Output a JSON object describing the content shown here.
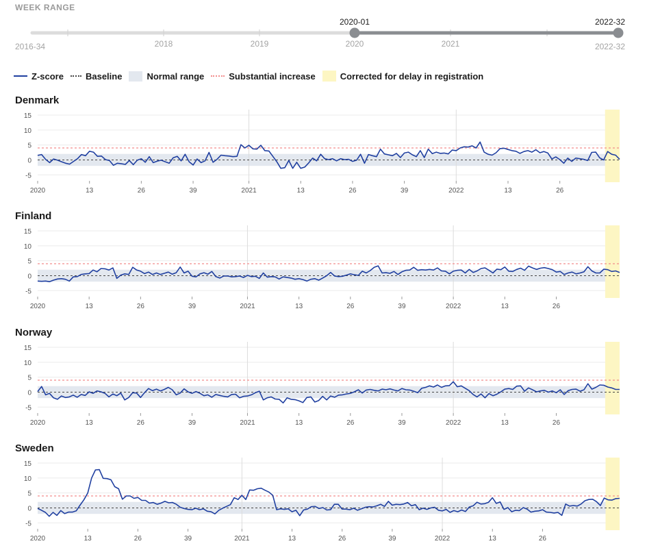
{
  "range": {
    "title": "WEEK RANGE",
    "min_label": "2016-34",
    "max_label": "2022-32",
    "start_label": "2020-01",
    "end_label": "2022-32",
    "tick_labels": [
      "2018",
      "2019",
      "2020",
      "2021"
    ]
  },
  "legend": {
    "zscore": "Z-score",
    "baseline": "Baseline",
    "normal": "Normal range",
    "substantial": "Substantial increase",
    "corrected": "Corrected for delay in registration"
  },
  "colors": {
    "zscore": "#1f3fa0",
    "baseline": "#444444",
    "normal_range": "#e3e8ef",
    "substantial": "#f28c8c",
    "corrected": "#fdf6c3",
    "slider_selected": "#8a8d91",
    "slider_track": "#dcdcdc"
  },
  "chart_data": [
    {
      "type": "line",
      "title": "Denmark",
      "x_tick_labels": [
        "2020",
        "13",
        "26",
        "39",
        "2021",
        "13",
        "26",
        "39",
        "2022",
        "13",
        "26"
      ],
      "y_ticks": [
        15,
        10,
        5,
        0,
        -5
      ],
      "ylim": [
        -7,
        15
      ],
      "baseline": 0,
      "normal_range": [
        -2,
        2
      ],
      "substantial_threshold": 4,
      "corrected_weeks": 4,
      "series": [
        {
          "values": [
            1.5,
            1.8,
            0.2,
            -0.9,
            0.3,
            -0.1,
            -0.6,
            -1.1,
            -1.4,
            -0.5,
            0.4,
            1.8,
            1.4,
            2.9,
            2.6,
            1.2,
            1.3,
            0.1,
            -0.2,
            -1.8,
            -1.1,
            -1.3,
            -1.5,
            -0.2,
            -1.6,
            -0.1,
            0.4,
            -0.8,
            1.1,
            -0.9,
            -0.4,
            -0.1,
            -0.6,
            -1.1,
            0.7,
            1.2,
            -0.3,
            1.9,
            -0.6,
            -1.7,
            0.3,
            -0.9,
            -0.3,
            2.5,
            -0.8,
            0.2,
            1.6,
            1.4,
            1.3,
            1.1,
            1.2,
            5.1,
            4.0,
            4.9,
            3.7,
            3.6,
            4.9,
            3.1,
            3.0,
            1.2,
            -0.6,
            -2.8,
            -2.6,
            -0.2,
            -2.8,
            -0.8,
            -2.8,
            -2.4,
            -1.0,
            0.6,
            -0.3,
            1.9,
            0.4,
            0.1,
            0.4,
            -0.3,
            0.4,
            0.1,
            0.2,
            -0.5,
            -0.1,
            1.9,
            -1.1,
            1.8,
            1.4,
            1.1,
            3.6,
            2.0,
            1.7,
            1.4,
            2.2,
            0.8,
            2.3,
            2.6,
            1.7,
            1.1,
            3.1,
            0.8,
            3.6,
            2.1,
            2.6,
            2.2,
            2.3,
            2.0,
            3.3,
            3.1,
            4.0,
            4.4,
            4.3,
            4.7,
            4.0,
            6.0,
            2.6,
            1.9,
            1.6,
            2.4,
            3.8,
            3.9,
            3.5,
            3.1,
            2.9,
            2.2,
            2.8,
            3.1,
            2.6,
            3.4,
            2.4,
            2.8,
            2.3,
            0.3,
            1.0,
            0.1,
            -1.1,
            0.6,
            -0.5,
            0.6,
            0.4,
            0.2,
            -0.2,
            2.5,
            2.6,
            0.7,
            0.0,
            2.8,
            1.9,
            1.6,
            0.2
          ]
        }
      ]
    },
    {
      "type": "line",
      "title": "Finland",
      "x_tick_labels": [
        "2020",
        "13",
        "26",
        "39",
        "2021",
        "13",
        "26",
        "39",
        "2022",
        "13",
        "26"
      ],
      "y_ticks": [
        15,
        10,
        5,
        0,
        -5
      ],
      "ylim": [
        -7,
        15
      ],
      "baseline": 0,
      "normal_range": [
        -2,
        2
      ],
      "substantial_threshold": 4,
      "corrected_weeks": 4,
      "series": [
        {
          "values": [
            -1.8,
            -1.9,
            -1.8,
            -2.0,
            -1.5,
            -1.1,
            -1.0,
            -1.2,
            -1.8,
            -0.4,
            -0.3,
            0.4,
            0.6,
            0.7,
            1.9,
            1.3,
            2.4,
            2.3,
            1.9,
            2.6,
            -0.9,
            0.2,
            0.6,
            0.4,
            2.8,
            1.9,
            1.5,
            0.7,
            1.2,
            0.4,
            0.9,
            0.4,
            0.8,
            1.2,
            0.5,
            1.0,
            2.9,
            0.9,
            1.5,
            -0.2,
            -0.4,
            0.6,
            1.0,
            0.5,
            1.4,
            -0.3,
            -0.8,
            -0.1,
            -0.1,
            -0.4,
            -0.3,
            -0.1,
            -0.6,
            0.1,
            -0.3,
            -0.2,
            -0.9,
            0.9,
            -0.5,
            -0.3,
            -0.4,
            -1.1,
            -0.4,
            -0.6,
            -0.8,
            -1.2,
            -1.0,
            -1.3,
            -1.8,
            -1.2,
            -1.0,
            -1.5,
            -0.8,
            0.0,
            1.1,
            -0.1,
            -0.3,
            -0.2,
            0.2,
            0.6,
            0.3,
            0.1,
            1.5,
            0.9,
            1.7,
            2.8,
            3.3,
            0.9,
            1.0,
            0.8,
            1.4,
            0.4,
            1.3,
            1.8,
            1.9,
            2.8,
            1.8,
            2.0,
            1.9,
            2.1,
            1.9,
            2.6,
            1.6,
            1.5,
            0.6,
            1.5,
            1.8,
            1.9,
            0.9,
            2.1,
            1.1,
            1.6,
            2.4,
            2.6,
            1.8,
            0.9,
            2.2,
            2.0,
            2.9,
            1.5,
            1.4,
            2.1,
            2.5,
            1.8,
            3.2,
            2.6,
            2.1,
            2.5,
            2.7,
            2.4,
            2.0,
            1.2,
            1.4,
            0.4,
            0.9,
            1.2,
            0.6,
            0.9,
            1.3,
            3.0,
            1.6,
            0.9,
            0.9,
            2.2,
            2.0,
            1.4,
            1.6,
            1.1
          ]
        }
      ]
    },
    {
      "type": "line",
      "title": "Norway",
      "x_tick_labels": [
        "2020",
        "13",
        "26",
        "39",
        "2021",
        "13",
        "26",
        "39",
        "2022",
        "13",
        "26"
      ],
      "y_ticks": [
        15,
        10,
        5,
        0,
        -5
      ],
      "ylim": [
        -7,
        15
      ],
      "baseline": 0,
      "normal_range": [
        -2,
        2
      ],
      "substantial_threshold": 4,
      "corrected_weeks": 4,
      "series": [
        {
          "values": [
            0.2,
            1.9,
            -0.9,
            -0.4,
            -1.9,
            -2.4,
            -1.3,
            -1.8,
            -1.6,
            -1.0,
            -1.7,
            -0.8,
            -1.1,
            0.1,
            -0.4,
            0.4,
            0.1,
            -0.4,
            -1.6,
            -0.6,
            -1.2,
            -0.3,
            -2.6,
            -1.8,
            -0.2,
            -0.3,
            -1.8,
            -0.2,
            1.2,
            0.5,
            1.0,
            0.4,
            0.9,
            1.6,
            0.8,
            -0.9,
            -0.3,
            1.1,
            0.1,
            -0.4,
            0.2,
            -0.4,
            -1.2,
            -0.9,
            -1.7,
            -0.8,
            -1.1,
            -1.4,
            -1.6,
            -0.8,
            -0.7,
            -1.9,
            -1.4,
            -1.3,
            -0.9,
            -0.2,
            0.3,
            -2.6,
            -1.9,
            -1.6,
            -2.3,
            -2.4,
            -3.6,
            -1.9,
            -2.4,
            -2.5,
            -2.9,
            -3.5,
            -1.8,
            -1.6,
            -3.3,
            -2.8,
            -1.4,
            -2.6,
            -1.3,
            -1.7,
            -1.0,
            -0.9,
            -0.6,
            -0.4,
            0.1,
            0.8,
            -0.3,
            0.7,
            0.9,
            0.6,
            0.4,
            1.0,
            0.8,
            1.1,
            0.7,
            0.4,
            1.2,
            0.8,
            0.7,
            0.3,
            -0.2,
            1.3,
            1.6,
            2.1,
            1.7,
            2.4,
            1.6,
            2.1,
            2.2,
            3.5,
            1.8,
            2.1,
            1.3,
            0.5,
            -0.8,
            -1.6,
            -0.6,
            -1.9,
            -0.5,
            -1.2,
            -0.7,
            0.1,
            1.0,
            1.2,
            0.9,
            2.0,
            2.1,
            0.3,
            1.4,
            0.8,
            0.1,
            0.4,
            0.6,
            0.0,
            0.4,
            -0.2,
            0.8,
            -0.8,
            0.5,
            0.9,
            1.0,
            0.3,
            0.8,
            2.8,
            1.0,
            1.6,
            2.4,
            2.3,
            1.7,
            1.4,
            0.9,
            0.9
          ]
        }
      ]
    },
    {
      "type": "line",
      "title": "Sweden",
      "x_tick_labels": [
        "2020",
        "13",
        "26",
        "39",
        "2021",
        "13",
        "26",
        "39",
        "2022",
        "13",
        "26"
      ],
      "y_ticks": [
        15,
        10,
        5,
        0,
        -5
      ],
      "ylim": [
        -7,
        15
      ],
      "baseline": 0,
      "normal_range": [
        -2,
        2
      ],
      "substantial_threshold": 4,
      "corrected_weeks": 4,
      "series": [
        {
          "values": [
            -0.2,
            -0.8,
            -1.5,
            -2.8,
            -1.5,
            -2.5,
            -0.9,
            -1.9,
            -1.4,
            -1.4,
            -1.0,
            0.9,
            2.7,
            5.0,
            10.0,
            12.7,
            12.8,
            9.9,
            9.8,
            9.4,
            7.1,
            6.4,
            2.9,
            4.0,
            4.0,
            3.2,
            3.5,
            2.5,
            2.5,
            1.6,
            1.8,
            1.2,
            1.6,
            2.2,
            1.7,
            1.8,
            1.2,
            0.2,
            -0.2,
            -0.5,
            -0.6,
            -0.1,
            -0.6,
            -0.3,
            -1.1,
            -1.3,
            -2.0,
            -0.8,
            -0.1,
            0.5,
            1.1,
            3.4,
            2.8,
            4.2,
            2.8,
            6.0,
            5.9,
            6.4,
            6.6,
            5.9,
            5.3,
            4.2,
            -0.6,
            -0.3,
            -0.5,
            -0.3,
            -1.3,
            -0.8,
            -2.6,
            -0.7,
            -0.4,
            0.4,
            0.5,
            -0.2,
            0.1,
            -0.7,
            -0.6,
            1.2,
            1.2,
            -0.4,
            -0.4,
            -0.6,
            -0.1,
            -0.8,
            -0.3,
            0.2,
            0.4,
            0.3,
            0.7,
            1.2,
            0.5,
            2.2,
            0.9,
            1.2,
            1.1,
            1.3,
            1.8,
            0.7,
            1.1,
            -0.6,
            -0.1,
            -0.5,
            0.0,
            0.2,
            -0.8,
            -1.0,
            -0.5,
            -1.5,
            -0.9,
            -1.3,
            -0.7,
            -1.2,
            0.3,
            0.7,
            1.9,
            1.3,
            1.4,
            1.9,
            3.4,
            1.5,
            2.0,
            -0.5,
            0.1,
            -1.3,
            -0.8,
            -0.9,
            0.1,
            -0.4,
            -1.4,
            -1.1,
            -1.0,
            -0.6,
            -1.4,
            -1.5,
            -1.7,
            -1.5,
            -2.5,
            1.3,
            0.6,
            0.8,
            0.6,
            1.3,
            2.4,
            2.8,
            2.9,
            2.1,
            0.8,
            3.3,
            2.7,
            2.6,
            3.1,
            3.2
          ]
        }
      ]
    }
  ]
}
